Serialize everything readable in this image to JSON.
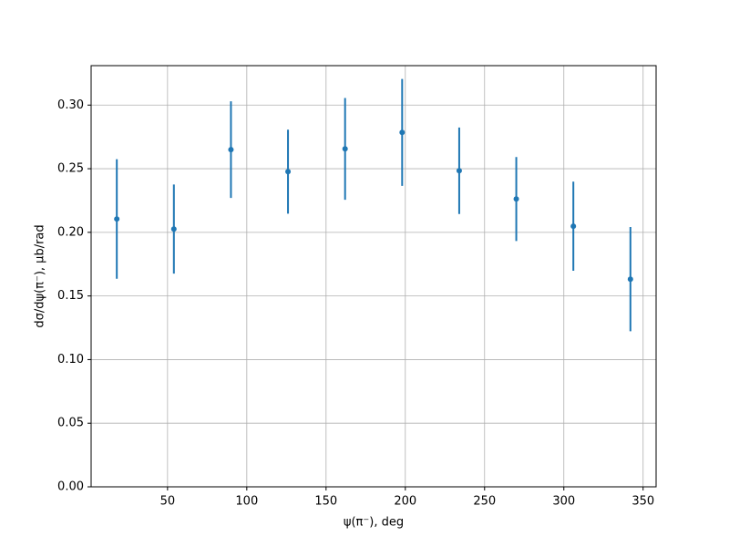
{
  "chart_data": {
    "type": "errorbar",
    "x": [
      18,
      54,
      90,
      126,
      162,
      198,
      234,
      270,
      306,
      342
    ],
    "values": [
      0.2105,
      0.2026,
      0.265,
      0.2477,
      0.2656,
      0.2785,
      0.2484,
      0.2262,
      0.2048,
      0.1632
    ],
    "errors": [
      0.047,
      0.035,
      0.038,
      0.033,
      0.04,
      0.042,
      0.034,
      0.033,
      0.035,
      0.041
    ],
    "color": "#1f77b4",
    "xlabel": "ψ(π⁻), deg",
    "ylabel": "dσ/dψ(π⁻), μb/rad",
    "xlim": [
      1.8,
      358.2
    ],
    "ylim": [
      0,
      0.331
    ],
    "xticks": [
      50,
      100,
      150,
      200,
      250,
      300,
      350
    ],
    "yticks": [
      {
        "value": 0,
        "label": "0.00"
      },
      {
        "value": 0.05,
        "label": "0.05"
      },
      {
        "value": 0.1,
        "label": "0.10"
      },
      {
        "value": 0.15,
        "label": "0.15"
      },
      {
        "value": 0.2,
        "label": "0.20"
      },
      {
        "value": 0.25,
        "label": "0.25"
      },
      {
        "value": 0.3,
        "label": "0.30"
      }
    ],
    "grid": true
  }
}
